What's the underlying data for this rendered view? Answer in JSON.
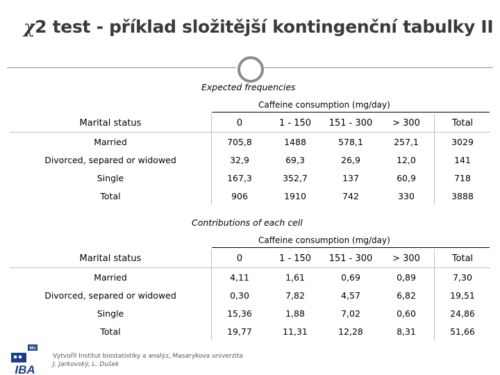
{
  "title": {
    "chi": "χ",
    "rest": "2 test - příklad složitější kontingenční tabulky II"
  },
  "expected": {
    "section_title": "Expected frequencies",
    "caffeine_header": "Caffeine consumption (mg/day)",
    "columns": [
      "Marital status",
      "0",
      "1 - 150",
      "151 - 300",
      "> 300",
      "Total"
    ],
    "rows": [
      [
        "Married",
        "705,8",
        "1488",
        "578,1",
        "257,1",
        "3029"
      ],
      [
        "Divorced, separed or widowed",
        "32,9",
        "69,3",
        "26,9",
        "12,0",
        "141"
      ],
      [
        "Single",
        "167,3",
        "352,7",
        "137",
        "60,9",
        "718"
      ],
      [
        "Total",
        "906",
        "1910",
        "742",
        "330",
        "3888"
      ]
    ]
  },
  "contributions": {
    "section_title": "Contributions of each cell",
    "caffeine_header": "Caffeine consumption (mg/day)",
    "columns": [
      "Marital status",
      "0",
      "1 - 150",
      "151 - 300",
      "> 300",
      "Total"
    ],
    "rows": [
      [
        "Married",
        "4,11",
        "1,61",
        "0,69",
        "0,89",
        "7,30"
      ],
      [
        "Divorced, separed or widowed",
        "0,30",
        "7,82",
        "4,57",
        "6,82",
        "19,51"
      ],
      [
        "Single",
        "15,36",
        "1,88",
        "7,02",
        "0,60",
        "24,86"
      ],
      [
        "Total",
        "19,77",
        "11,31",
        "12,28",
        "8,31",
        "51,66"
      ]
    ]
  },
  "footer": {
    "institute": "Vytvořil Institut biostatistiky a analýz, Masarykova univerzita",
    "authors": "J. Jarkovský, L. Dušek",
    "logo_text": "IBA",
    "logo_small": "MU"
  }
}
